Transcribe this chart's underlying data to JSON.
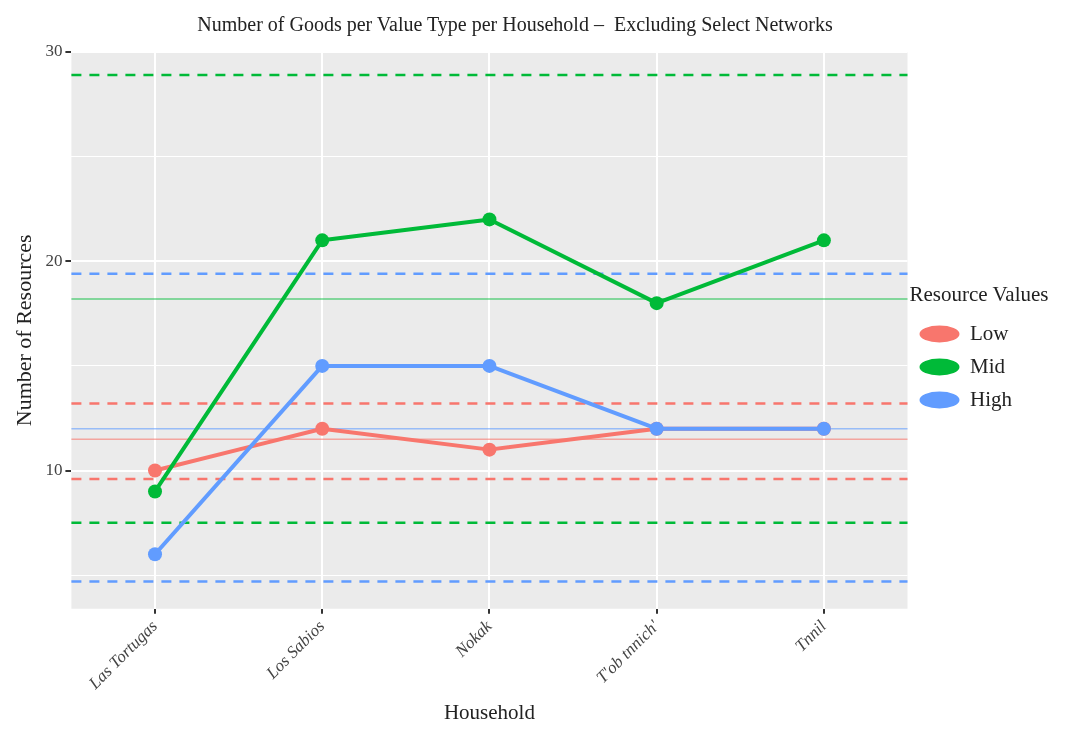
{
  "chart_data": {
    "type": "line",
    "title": "Number of Goods per Value Type per Household –  Excluding Select Networks",
    "xlabel": "Household",
    "ylabel": "Number of Resources",
    "legend_title": "Resource Values",
    "categories": [
      "Las Tortugas",
      "Los Sabios",
      "Nokak",
      "T'ob tnnich'",
      "Tnnil"
    ],
    "series": [
      {
        "name": "Low",
        "color": "#f8766d",
        "values": [
          10,
          12,
          11,
          12,
          12
        ]
      },
      {
        "name": "Mid",
        "color": "#00ba38",
        "values": [
          9,
          21,
          22,
          18,
          21
        ]
      },
      {
        "name": "High",
        "color": "#619cff",
        "values": [
          6,
          15,
          15,
          12,
          12
        ]
      }
    ],
    "ylim": [
      3.4,
      30
    ],
    "yticks": [
      {
        "value": 5,
        "label": null
      },
      10,
      {
        "value": 15,
        "label": null
      },
      20,
      {
        "value": 25,
        "label": null
      },
      30
    ],
    "ref_lines": [
      {
        "axis": "y",
        "value": 28.9,
        "color": "#00ba38",
        "line_style": "dashed"
      },
      {
        "axis": "y",
        "value": 18.2,
        "color": "#00ba38",
        "line_style": "solid"
      },
      {
        "axis": "y",
        "value": 7.5,
        "color": "#00ba38",
        "line_style": "dashed"
      },
      {
        "axis": "y",
        "value": 19.4,
        "color": "#619cff",
        "line_style": "dashed"
      },
      {
        "axis": "y",
        "value": 12.0,
        "color": "#619cff",
        "line_style": "solid"
      },
      {
        "axis": "y",
        "value": 4.7,
        "color": "#619cff",
        "line_style": "dashed"
      },
      {
        "axis": "y",
        "value": 13.2,
        "color": "#f8766d",
        "line_style": "dashed"
      },
      {
        "axis": "y",
        "value": 11.5,
        "color": "#f8766d",
        "line_style": "solid"
      },
      {
        "axis": "y",
        "value": 9.6,
        "color": "#f8766d",
        "line_style": "dashed"
      }
    ],
    "grid": true,
    "legend": "right",
    "marker": "circle",
    "line_style": "solid"
  }
}
